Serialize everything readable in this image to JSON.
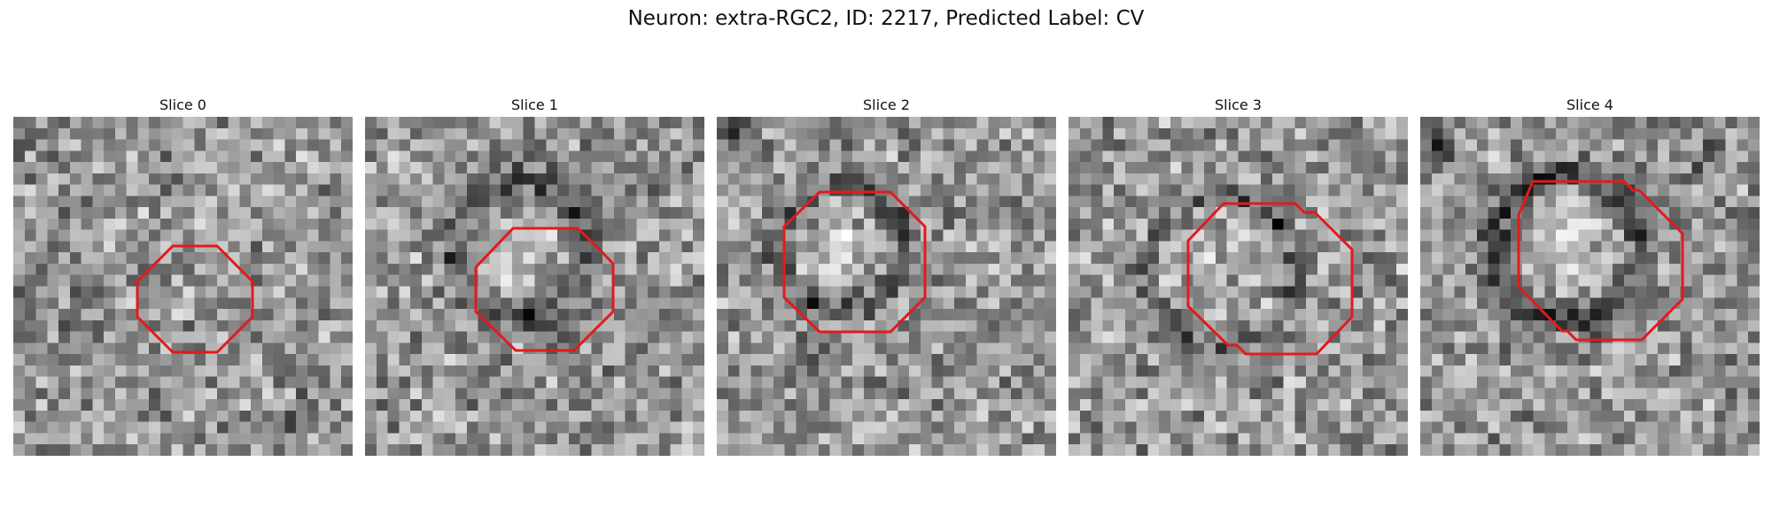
{
  "figure": {
    "title": "Neuron: extra-RGC2, ID: 2217, Predicted Label: CV"
  },
  "panels": [
    {
      "title": "Slice 0",
      "contour_color": "#e31a1c"
    },
    {
      "title": "Slice 1",
      "contour_color": "#e31a1c"
    },
    {
      "title": "Slice 2",
      "contour_color": "#e31a1c"
    },
    {
      "title": "Slice 3",
      "contour_color": "#e31a1c"
    },
    {
      "title": "Slice 4",
      "contour_color": "#e31a1c"
    }
  ],
  "colormap": "gray"
}
